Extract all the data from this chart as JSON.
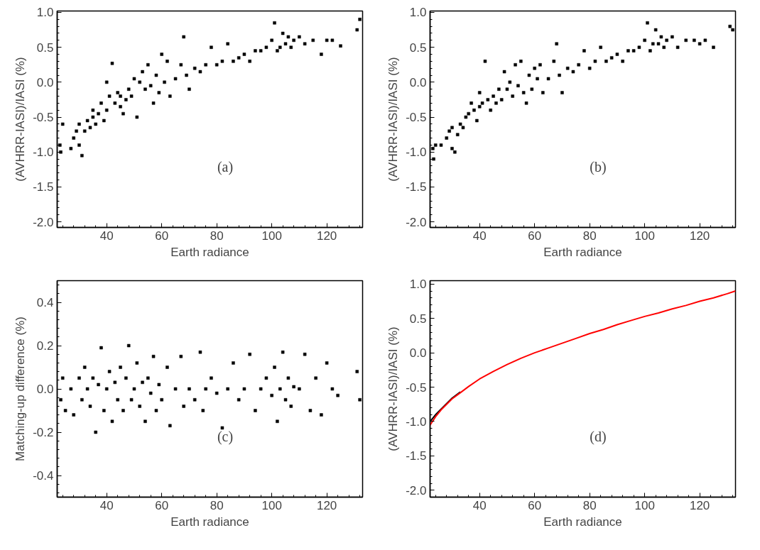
{
  "chart_data": [
    {
      "type": "scatter",
      "xlabel": "Earth radiance",
      "ylabel": "(AVHRR-IASI)/IASI (%)",
      "annotations": [
        "(a)"
      ],
      "xlim": [
        22,
        133
      ],
      "ylim": [
        -2.08,
        1.02
      ],
      "xticks": [
        40,
        60,
        80,
        100,
        120
      ],
      "yticks": [
        {
          "value": -2,
          "label": "-2.0"
        },
        -1.5,
        {
          "value": -1,
          "label": "-1.0"
        },
        -0.5,
        {
          "value": 0,
          "label": "0.0"
        },
        0.5,
        {
          "value": 1,
          "label": "1.0"
        }
      ],
      "grid": false,
      "marker": "square",
      "series": [
        {
          "color": "#000000",
          "x": [
            23.3,
            23,
            24,
            27,
            28,
            29,
            30,
            30,
            31,
            32,
            33,
            34,
            35,
            35,
            36,
            37,
            38,
            39,
            40,
            40,
            41,
            42,
            43,
            44,
            45,
            45,
            46,
            47,
            48,
            49,
            50,
            51,
            52,
            53,
            54,
            55,
            56,
            57,
            58,
            59,
            60,
            61,
            62,
            63,
            65,
            67,
            68,
            69,
            70,
            72,
            74,
            76,
            78,
            80,
            82,
            84,
            86,
            88,
            90,
            92,
            94,
            96,
            98,
            100,
            101,
            102,
            103,
            104,
            105,
            106,
            107,
            108,
            110,
            112,
            115,
            118,
            120,
            122,
            125,
            131,
            132
          ],
          "values": [
            -1.0,
            -0.9,
            -0.6,
            -0.95,
            -0.8,
            -0.7,
            -0.9,
            -0.6,
            -1.05,
            -0.7,
            -0.55,
            -0.65,
            -0.5,
            -0.4,
            -0.6,
            -0.45,
            -0.3,
            -0.55,
            -0.4,
            0.0,
            -0.2,
            0.27,
            -0.3,
            -0.15,
            -0.35,
            -0.2,
            -0.45,
            -0.25,
            -0.1,
            -0.2,
            0.05,
            -0.5,
            0.0,
            0.15,
            -0.1,
            0.25,
            -0.05,
            -0.3,
            0.1,
            -0.15,
            0.4,
            0.0,
            0.3,
            -0.2,
            0.05,
            0.25,
            0.65,
            0.1,
            -0.1,
            0.2,
            0.15,
            0.25,
            0.5,
            0.25,
            0.3,
            0.55,
            0.3,
            0.35,
            0.4,
            0.3,
            0.45,
            0.45,
            0.5,
            0.6,
            0.85,
            0.45,
            0.5,
            0.7,
            0.55,
            0.65,
            0.5,
            0.6,
            0.65,
            0.55,
            0.6,
            0.4,
            0.6,
            0.6,
            0.52,
            0.75,
            0.9
          ]
        }
      ]
    },
    {
      "type": "scatter",
      "xlabel": "Earth radiance",
      "ylabel": "(AVHRR-IASI)/IASI (%)",
      "annotations": [
        "(b)"
      ],
      "xlim": [
        22,
        133
      ],
      "ylim": [
        -2.08,
        1.02
      ],
      "xticks": [
        40,
        60,
        80,
        100,
        120
      ],
      "yticks": [
        {
          "value": -2,
          "label": "-2.0"
        },
        -1.5,
        {
          "value": -1,
          "label": "-1.0"
        },
        -0.5,
        {
          "value": 0,
          "label": "0.0"
        },
        0.5,
        {
          "value": 1,
          "label": "1.0"
        }
      ],
      "grid": false,
      "marker": "square",
      "series": [
        {
          "color": "#000000",
          "x": [
            23.3,
            23,
            24,
            26,
            28,
            29,
            30,
            30,
            31,
            32,
            33,
            34,
            35,
            36,
            37,
            38,
            39,
            40,
            40,
            41,
            42,
            43,
            44,
            45,
            46,
            47,
            48,
            49,
            50,
            51,
            52,
            53,
            54,
            55,
            56,
            57,
            58,
            59,
            60,
            61,
            62,
            63,
            65,
            67,
            68,
            69,
            70,
            72,
            74,
            76,
            78,
            80,
            82,
            84,
            86,
            88,
            90,
            92,
            94,
            96,
            98,
            100,
            101,
            102,
            103,
            104,
            105,
            106,
            107,
            108,
            110,
            112,
            115,
            118,
            120,
            122,
            125,
            131,
            132
          ],
          "values": [
            -1.1,
            -0.95,
            -0.9,
            -0.9,
            -0.8,
            -0.7,
            -0.95,
            -0.65,
            -1.0,
            -0.75,
            -0.6,
            -0.65,
            -0.5,
            -0.45,
            -0.3,
            -0.4,
            -0.55,
            -0.35,
            -0.15,
            -0.3,
            0.3,
            -0.25,
            -0.4,
            -0.2,
            -0.3,
            -0.1,
            -0.25,
            0.15,
            -0.1,
            0.0,
            -0.2,
            0.25,
            -0.05,
            0.3,
            -0.15,
            -0.3,
            0.1,
            -0.1,
            0.2,
            0.05,
            0.25,
            -0.15,
            0.05,
            0.3,
            0.55,
            0.1,
            -0.15,
            0.2,
            0.15,
            0.25,
            0.45,
            0.2,
            0.3,
            0.5,
            0.3,
            0.35,
            0.4,
            0.3,
            0.45,
            0.45,
            0.5,
            0.6,
            0.85,
            0.45,
            0.55,
            0.75,
            0.55,
            0.65,
            0.5,
            0.6,
            0.65,
            0.5,
            0.6,
            0.6,
            0.55,
            0.6,
            0.5,
            0.8,
            0.75
          ]
        }
      ]
    },
    {
      "type": "scatter",
      "xlabel": "Earth radiance",
      "ylabel": "Matching-up difference (%)",
      "annotations": [
        "(c)"
      ],
      "xlim": [
        22,
        133
      ],
      "ylim": [
        -0.5,
        0.5
      ],
      "xticks": [
        40,
        60,
        80,
        100,
        120
      ],
      "yticks": [
        -0.4,
        -0.2,
        {
          "value": 0,
          "label": "0.0"
        },
        0.2,
        0.4
      ],
      "grid": false,
      "marker": "square",
      "series": [
        {
          "color": "#000000",
          "x": [
            23.3,
            24,
            25,
            27,
            28,
            30,
            31,
            32,
            33,
            34,
            35,
            36,
            37,
            38,
            39,
            40,
            41,
            42,
            43,
            44,
            45,
            46,
            47,
            48,
            49,
            50,
            51,
            52,
            53,
            54,
            55,
            56,
            57,
            58,
            59,
            60,
            62,
            63,
            65,
            67,
            68,
            70,
            72,
            74,
            75,
            76,
            78,
            80,
            82,
            84,
            86,
            88,
            90,
            92,
            94,
            96,
            98,
            100,
            101,
            102,
            103,
            104,
            105,
            106,
            107,
            108,
            110,
            112,
            114,
            116,
            118,
            120,
            122,
            124,
            131,
            132
          ],
          "values": [
            -0.05,
            0.05,
            -0.1,
            0.0,
            -0.12,
            0.05,
            -0.05,
            0.1,
            0.0,
            -0.08,
            0.05,
            -0.2,
            0.02,
            0.19,
            -0.1,
            0.0,
            0.08,
            -0.15,
            0.03,
            -0.05,
            0.1,
            -0.1,
            0.05,
            0.2,
            -0.05,
            0.0,
            0.12,
            -0.08,
            0.03,
            -0.15,
            0.05,
            -0.02,
            0.15,
            -0.1,
            0.02,
            -0.05,
            0.1,
            -0.17,
            0.0,
            0.15,
            -0.08,
            0.0,
            -0.05,
            0.17,
            -0.1,
            0.0,
            0.05,
            -0.02,
            -0.18,
            0.0,
            0.12,
            -0.05,
            0.0,
            0.16,
            -0.1,
            0.0,
            0.05,
            -0.03,
            0.1,
            -0.15,
            0.0,
            0.17,
            -0.05,
            0.05,
            -0.08,
            0.01,
            0.0,
            0.16,
            -0.1,
            0.05,
            -0.12,
            0.12,
            0.0,
            -0.03,
            0.08,
            -0.05
          ]
        }
      ]
    },
    {
      "type": "line",
      "xlabel": "Earth radiance",
      "ylabel": "(AVHRR-IASI)/IASI (%)",
      "annotations": [
        "(d)"
      ],
      "xlim": [
        22,
        133
      ],
      "ylim": [
        -2.1,
        1.05
      ],
      "xticks": [
        40,
        60,
        80,
        100,
        120
      ],
      "yticks": [
        {
          "value": -2,
          "label": "-2.0"
        },
        -1.5,
        {
          "value": -1,
          "label": "-1.0"
        },
        -0.5,
        {
          "value": 0,
          "label": "0.0"
        },
        0.5,
        {
          "value": 1,
          "label": "1.0"
        }
      ],
      "grid": false,
      "marker": "none",
      "line_style": "solid",
      "series": [
        {
          "color": "#000000",
          "x": [
            22,
            24,
            26,
            28,
            30,
            33
          ],
          "values": [
            -1.0,
            -0.9,
            -0.82,
            -0.74,
            -0.66,
            -0.57
          ]
        },
        {
          "color": "#ff0000",
          "x": [
            22,
            24,
            26,
            28,
            30,
            33,
            36,
            40,
            45,
            50,
            55,
            60,
            65,
            70,
            75,
            80,
            85,
            90,
            95,
            100,
            105,
            110,
            115,
            120,
            125,
            130,
            133
          ],
          "values": [
            -1.05,
            -0.93,
            -0.83,
            -0.75,
            -0.67,
            -0.58,
            -0.49,
            -0.38,
            -0.27,
            -0.17,
            -0.08,
            0.0,
            0.07,
            0.14,
            0.21,
            0.28,
            0.34,
            0.41,
            0.47,
            0.53,
            0.58,
            0.64,
            0.69,
            0.75,
            0.8,
            0.86,
            0.9
          ]
        }
      ]
    }
  ]
}
